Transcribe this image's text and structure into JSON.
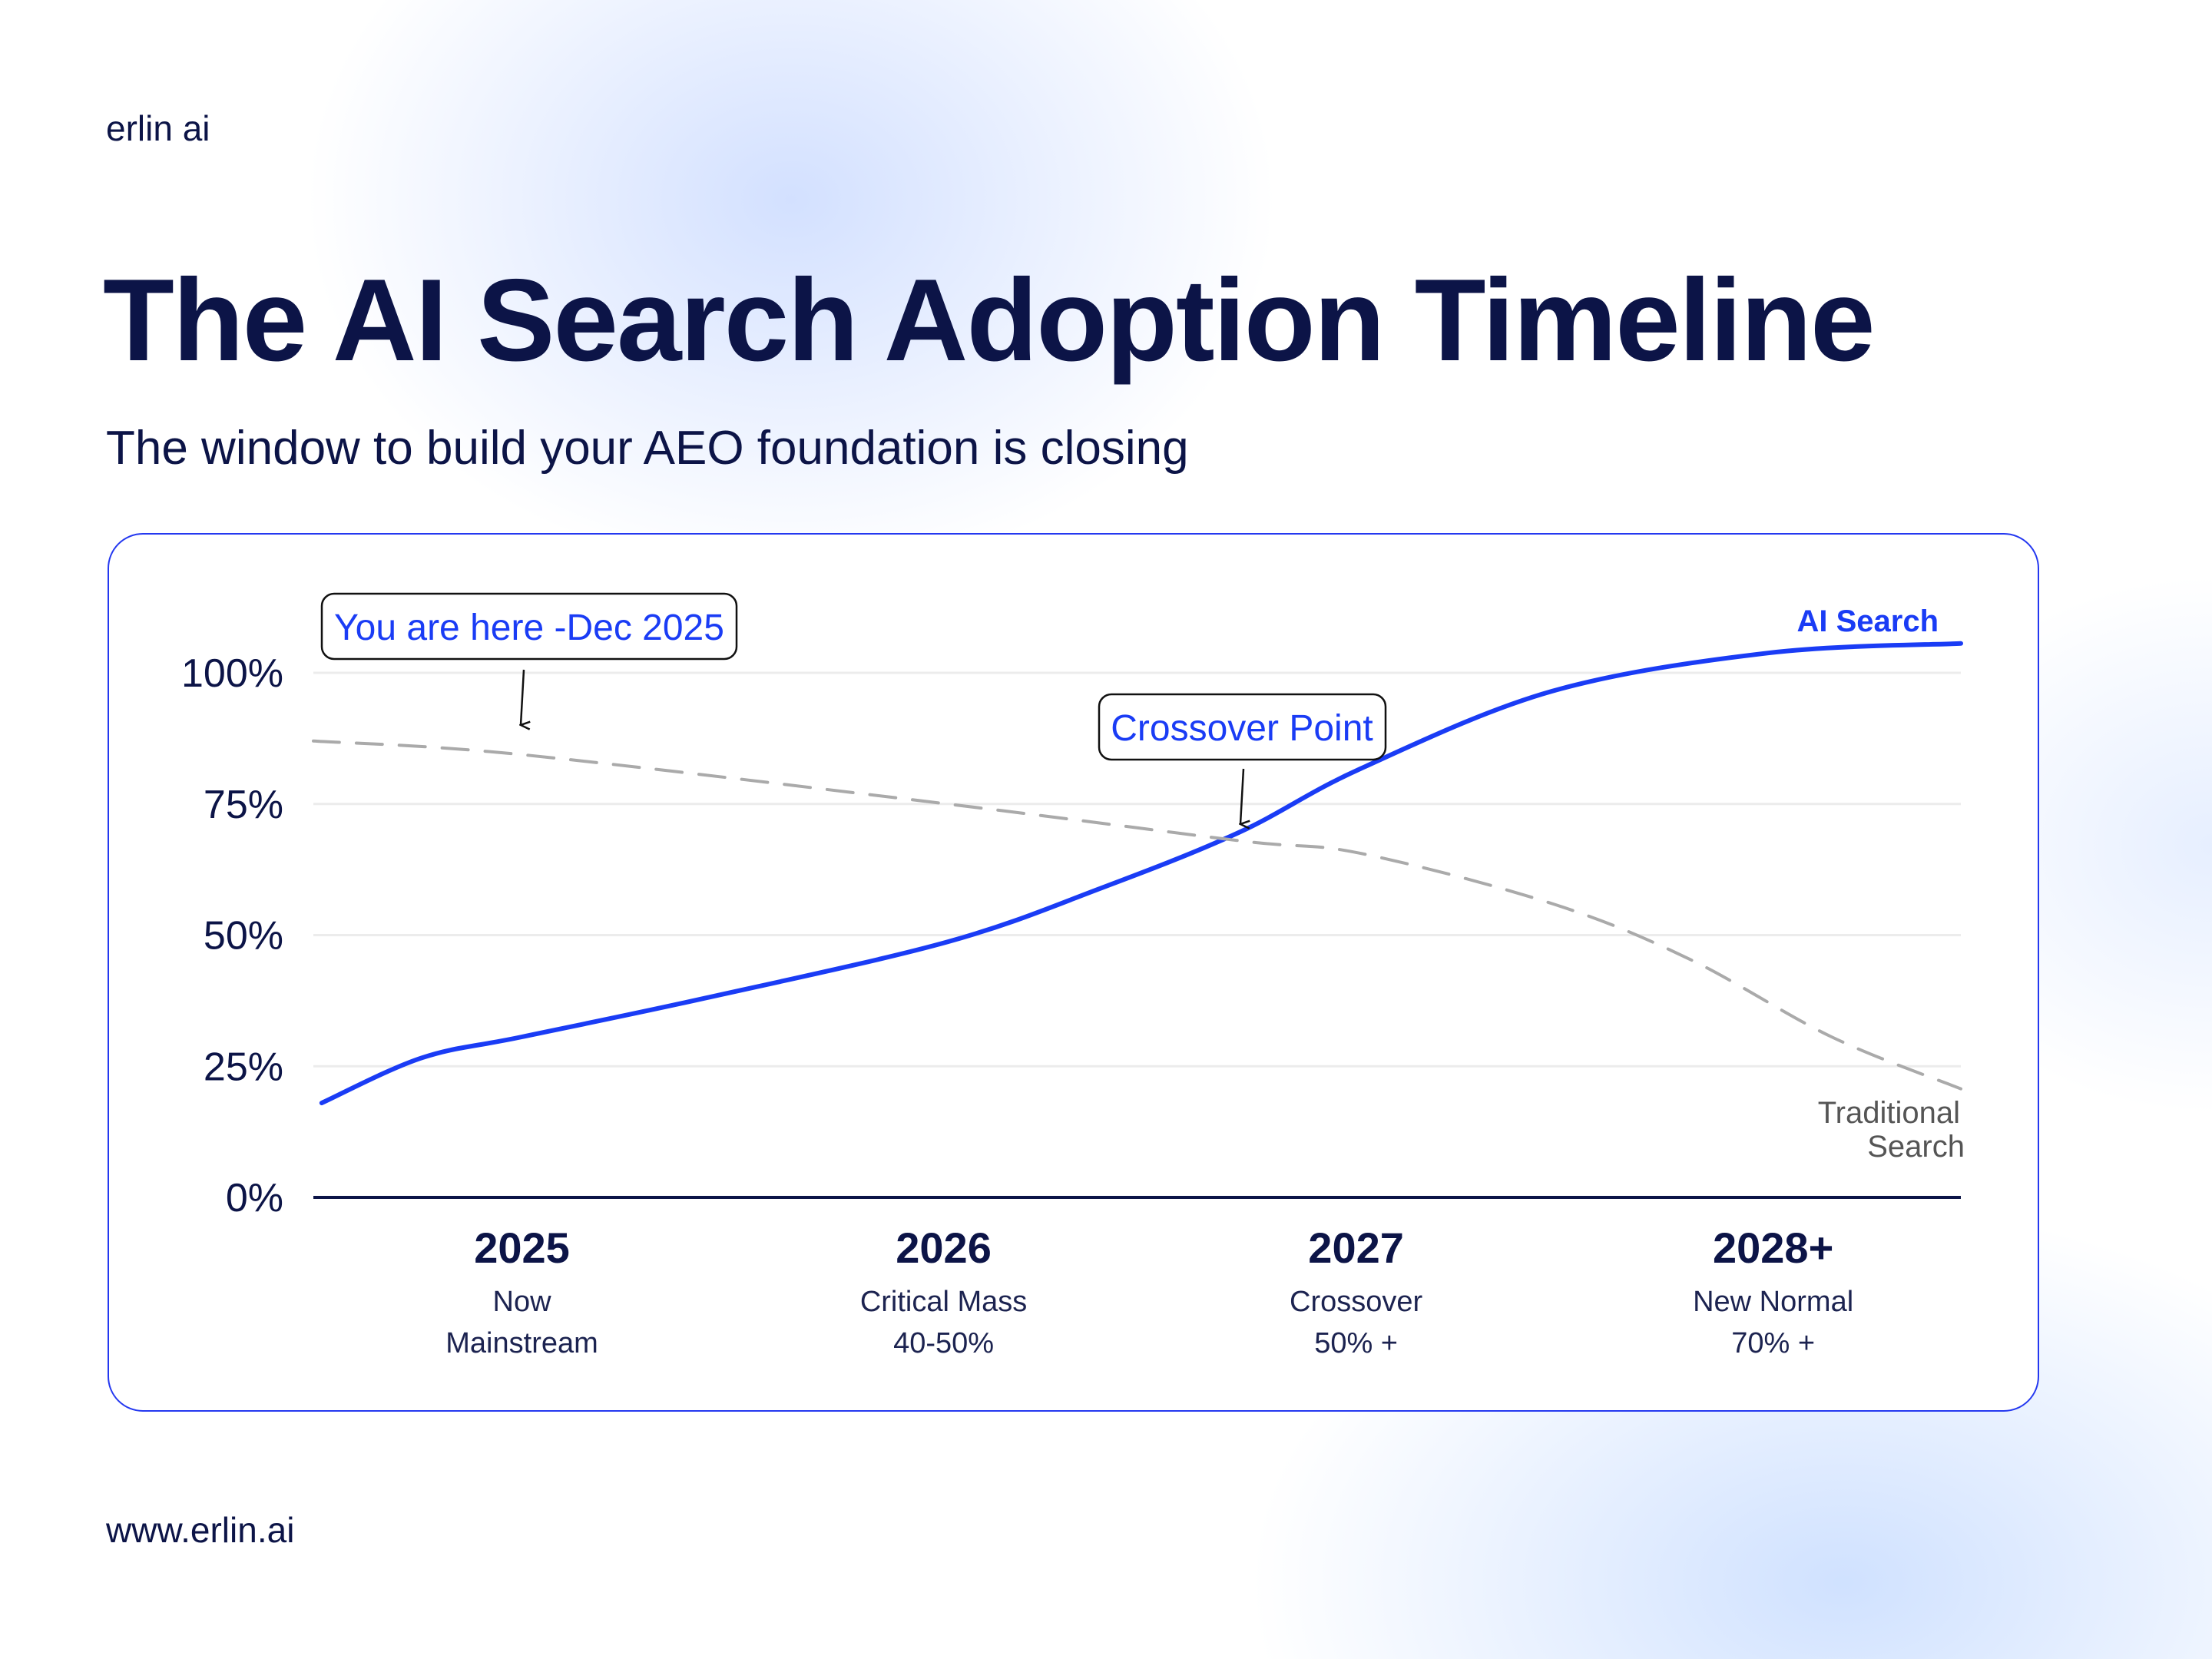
{
  "brand": "erlin ai",
  "title": "The AI Search Adoption Timeline",
  "subtitle": "The window to build your AEO foundation is closing",
  "footer": "www.erlin.ai",
  "colors": {
    "ai": "#1a3cf5",
    "traditional": "#aaaaaa",
    "axis": "#0c1447",
    "card_border": "#2438f0"
  },
  "chart_data": {
    "type": "line",
    "ylim": [
      0,
      105
    ],
    "xlim": [
      2024.5,
      2028.45
    ],
    "yticks": [
      0,
      25,
      50,
      75,
      100
    ],
    "ytick_labels": [
      "0%",
      "25%",
      "50%",
      "75%",
      "100%"
    ],
    "grid": true,
    "categories": [
      {
        "x": 2025,
        "year": "2025",
        "line1": "Now",
        "line2": "Mainstream"
      },
      {
        "x": 2026,
        "year": "2026",
        "line1": "Critical Mass",
        "line2": "40-50%"
      },
      {
        "x": 2027,
        "year": "2027",
        "line1": "Crossover",
        "line2": "50% +"
      },
      {
        "x": 2028,
        "year": "2028+",
        "line1": "New Normal",
        "line2": "70% +"
      }
    ],
    "series": [
      {
        "name": "AI Search",
        "style": "solid",
        "x": [
          2024.52,
          2024.76,
          2025.0,
          2025.44,
          2026.02,
          2026.39,
          2026.72,
          2027.01,
          2027.47,
          2027.99,
          2028.45
        ],
        "y": [
          18,
          26.6,
          30.6,
          38,
          48.7,
          59,
          69.6,
          81.7,
          96.5,
          103.8,
          105.6
        ]
      },
      {
        "name": "Traditional Search",
        "style": "dashed",
        "x": [
          2024.5,
          2025.0,
          2026.02,
          2026.72,
          2027.01,
          2027.47,
          2027.8,
          2028.14,
          2028.45
        ],
        "y": [
          87,
          84.4,
          75,
          68,
          65.6,
          56,
          45.4,
          30.6,
          20.7
        ]
      }
    ],
    "series_labels": {
      "ai": "AI Search",
      "traditional_line1": "Traditional",
      "traditional_line2": "Search"
    },
    "annotations": [
      {
        "text": "You are here -Dec 2025",
        "x": 2025.0
      },
      {
        "text": "Crossover Point",
        "x": 2026.72
      }
    ]
  }
}
